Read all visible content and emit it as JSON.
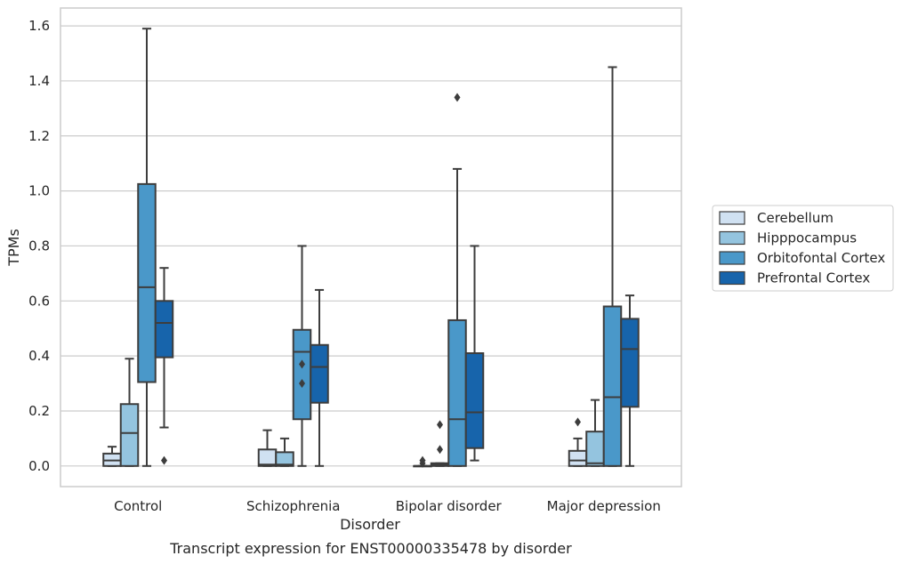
{
  "chart_data": {
    "type": "box",
    "caption": "Transcript expression for ENST00000335478 by disorder",
    "xlabel": "Disorder",
    "ylabel": "TPMs",
    "ylim": [
      -0.075,
      1.665
    ],
    "yticks": [
      0.0,
      0.2,
      0.4,
      0.6,
      0.8,
      1.0,
      1.2,
      1.4,
      1.6
    ],
    "ytick_labels": [
      "0.0",
      "0.2",
      "0.4",
      "0.6",
      "0.8",
      "1.0",
      "1.2",
      "1.4",
      "1.6"
    ],
    "grid": "horizontal",
    "legend_position": "right",
    "categories": [
      "Control",
      "Schizophrenia",
      "Bipolar disorder",
      "Major depression"
    ],
    "series": [
      {
        "name": "Cerebellum",
        "color": "#d0e1f2",
        "boxes": [
          {
            "whislo": 0.0,
            "q1": 0.0,
            "med": 0.02,
            "q3": 0.045,
            "whishi": 0.07,
            "fliers": []
          },
          {
            "whislo": 0.0,
            "q1": 0.0,
            "med": 0.005,
            "q3": 0.06,
            "whishi": 0.13,
            "fliers": []
          },
          {
            "whislo": 0.0,
            "q1": 0.0,
            "med": 0.0,
            "q3": 0.0,
            "whishi": 0.0,
            "fliers": [
              0.01,
              0.02
            ]
          },
          {
            "whislo": 0.0,
            "q1": 0.0,
            "med": 0.02,
            "q3": 0.055,
            "whishi": 0.1,
            "fliers": [
              0.16
            ]
          }
        ]
      },
      {
        "name": "Hipppocampus",
        "color": "#94c4df",
        "boxes": [
          {
            "whislo": 0.0,
            "q1": 0.0,
            "med": 0.12,
            "q3": 0.225,
            "whishi": 0.39,
            "fliers": []
          },
          {
            "whislo": 0.0,
            "q1": 0.0,
            "med": 0.005,
            "q3": 0.05,
            "whishi": 0.1,
            "fliers": []
          },
          {
            "whislo": 0.0,
            "q1": 0.0,
            "med": 0.005,
            "q3": 0.01,
            "whishi": 0.01,
            "fliers": [
              0.06,
              0.15
            ]
          },
          {
            "whislo": 0.0,
            "q1": 0.0,
            "med": 0.01,
            "q3": 0.125,
            "whishi": 0.24,
            "fliers": []
          }
        ]
      },
      {
        "name": "Orbitofontal Cortex",
        "color": "#4a98c9",
        "boxes": [
          {
            "whislo": 0.0,
            "q1": 0.305,
            "med": 0.65,
            "q3": 1.025,
            "whishi": 1.59,
            "fliers": []
          },
          {
            "whislo": 0.0,
            "q1": 0.17,
            "med": 0.415,
            "q3": 0.495,
            "whishi": 0.8,
            "fliers": [
              0.3,
              0.37
            ]
          },
          {
            "whislo": 0.0,
            "q1": 0.0,
            "med": 0.17,
            "q3": 0.53,
            "whishi": 1.08,
            "fliers": [
              1.34
            ]
          },
          {
            "whislo": 0.0,
            "q1": 0.0,
            "med": 0.25,
            "q3": 0.58,
            "whishi": 1.45,
            "fliers": []
          }
        ]
      },
      {
        "name": "Prefrontal Cortex",
        "color": "#1764ab",
        "boxes": [
          {
            "whislo": 0.14,
            "q1": 0.395,
            "med": 0.52,
            "q3": 0.6,
            "whishi": 0.72,
            "fliers": [
              0.02
            ]
          },
          {
            "whislo": 0.0,
            "q1": 0.23,
            "med": 0.36,
            "q3": 0.44,
            "whishi": 0.64,
            "fliers": []
          },
          {
            "whislo": 0.02,
            "q1": 0.065,
            "med": 0.195,
            "q3": 0.41,
            "whishi": 0.8,
            "fliers": []
          },
          {
            "whislo": 0.0,
            "q1": 0.215,
            "med": 0.425,
            "q3": 0.535,
            "whishi": 0.62,
            "fliers": []
          }
        ]
      }
    ]
  }
}
